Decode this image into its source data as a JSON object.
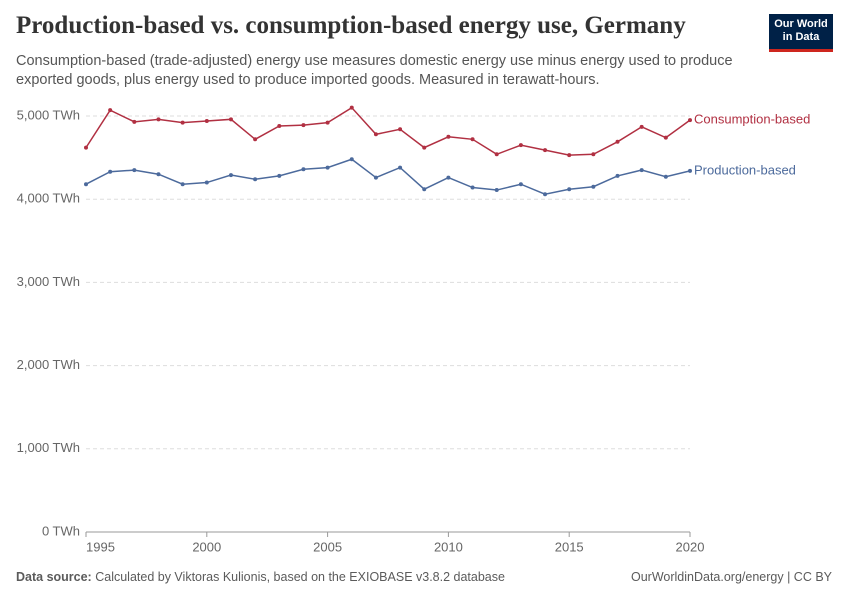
{
  "chart_data": {
    "type": "line",
    "title": "Production-based vs. consumption-based energy use, Germany",
    "subtitle": "Consumption-based (trade-adjusted) energy use measures domestic energy use minus energy used to produce exported goods, plus energy used to produce imported goods. Measured in terawatt-hours.",
    "logo": [
      "Our World",
      "in Data"
    ],
    "source_label": "Data source:",
    "source": "Calculated by Viktoras Kulionis, based on the EXIOBASE v3.8.2 database",
    "credit": "OurWorldinData.org/energy | CC BY",
    "x": [
      1995,
      1996,
      1997,
      1998,
      1999,
      2000,
      2001,
      2002,
      2003,
      2004,
      2005,
      2006,
      2007,
      2008,
      2009,
      2010,
      2011,
      2012,
      2013,
      2014,
      2015,
      2016,
      2017,
      2018,
      2019,
      2020
    ],
    "xlim": [
      1995,
      2020
    ],
    "xticks": [
      1995,
      2000,
      2005,
      2010,
      2015,
      2020
    ],
    "ylim": [
      0,
      5000
    ],
    "yticks": [
      {
        "value": 0,
        "label": "0 TWh"
      },
      {
        "value": 1000,
        "label": "1,000 TWh"
      },
      {
        "value": 2000,
        "label": "2,000 TWh"
      },
      {
        "value": 3000,
        "label": "3,000 TWh"
      },
      {
        "value": 4000,
        "label": "4,000 TWh"
      },
      {
        "value": 5000,
        "label": "5,000 TWh"
      }
    ],
    "grid": true,
    "series": [
      {
        "name": "Consumption-based",
        "color": "#b13042",
        "values": [
          4620,
          5070,
          4930,
          4960,
          4920,
          4940,
          4960,
          4720,
          4880,
          4890,
          4920,
          5100,
          4780,
          4840,
          4620,
          4750,
          4720,
          4540,
          4650,
          4590,
          4530,
          4540,
          4690,
          4870,
          4740,
          4950
        ]
      },
      {
        "name": "Production-based",
        "color": "#4c6a9c",
        "values": [
          4180,
          4330,
          4350,
          4300,
          4180,
          4200,
          4290,
          4240,
          4280,
          4360,
          4380,
          4480,
          4260,
          4380,
          4120,
          4260,
          4140,
          4110,
          4180,
          4060,
          4120,
          4150,
          4280,
          4350,
          4270,
          4340
        ]
      }
    ]
  }
}
